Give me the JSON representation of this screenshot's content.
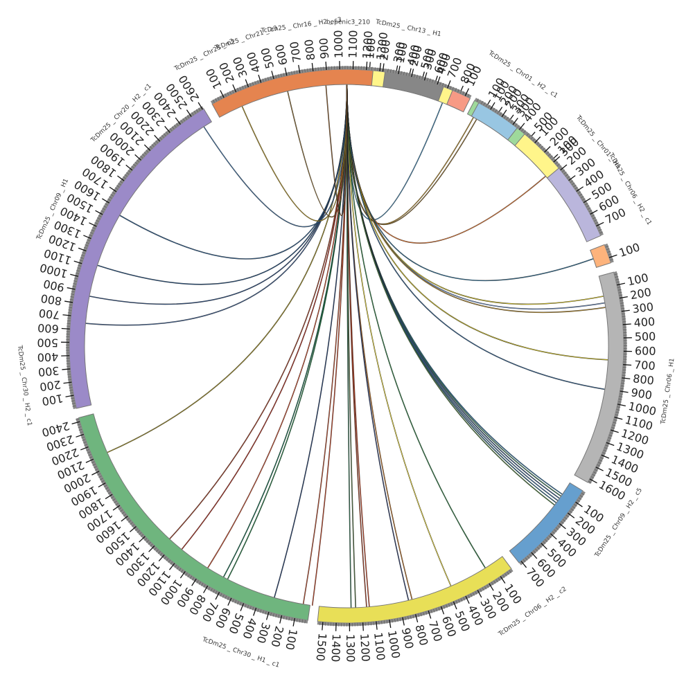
{
  "chart_data": {
    "type": "chord",
    "segments": [
      {
        "name": "bepenic3_210",
        "start_deg": 359.2,
        "end_deg": 360.6,
        "length": 40,
        "color": "#a6cee3",
        "ticks": [],
        "label_deg": 0.3
      },
      {
        "name": "TcDm25_Chr13_H1",
        "start_deg": 2.0,
        "end_deg": 25.5,
        "length": 850,
        "color": "#fff58a",
        "ticks": [
          100,
          200,
          300,
          400,
          500,
          600,
          700,
          800
        ],
        "label_deg": 11
      },
      {
        "name": "TcDm25_Chr01_H2_c1",
        "start_deg": 27.5,
        "end_deg": 43.0,
        "length": 560,
        "color": "#9ed99b",
        "ticks": [
          100,
          200,
          300,
          400,
          500
        ],
        "label_deg": 33
      },
      {
        "name": "TcDm25_Chr01_H1",
        "start_deg": 45.0,
        "end_deg": 66.5,
        "length": 780,
        "color": "#bab6dc",
        "ticks": [
          100,
          200,
          300,
          400,
          500,
          600,
          700
        ],
        "label_deg": 51
      },
      {
        "name": "TcDm25_Chr06_H2_c1",
        "start_deg": 68.5,
        "end_deg": 72.5,
        "length": 140,
        "color": "#fdb37c",
        "ticks": [
          100
        ],
        "label_deg": 61
      },
      {
        "name": "TcDm25_Chr06_H1",
        "start_deg": 74.5,
        "end_deg": 119.5,
        "length": 1630,
        "color": "#b5b5b5",
        "ticks": [
          100,
          200,
          300,
          400,
          500,
          600,
          700,
          800,
          900,
          1000,
          1100,
          1200,
          1300,
          1400,
          1500,
          1600
        ],
        "label_deg": 98
      },
      {
        "name": "TcDm25_Chr09_H2_c5",
        "start_deg": 121.5,
        "end_deg": 141.5,
        "length": 720,
        "color": "#669fce",
        "ticks": [
          100,
          200,
          300,
          400,
          500,
          600,
          700
        ],
        "label_deg": 123
      },
      {
        "name": "TcDm25_Chr06_H2_c2",
        "start_deg": 143.5,
        "end_deg": 186.0,
        "length": 1540,
        "color": "#e8df57",
        "ticks": [
          100,
          200,
          300,
          400,
          500,
          600,
          700,
          800,
          900,
          1000,
          1100,
          1200,
          1300,
          1400,
          1500
        ],
        "label_deg": 145
      },
      {
        "name": "TcDm25_Chr30_H1_c1",
        "start_deg": 188.0,
        "end_deg": 255.0,
        "length": 2430,
        "color": "#6fb57e",
        "ticks": [
          100,
          200,
          300,
          400,
          500,
          600,
          700,
          800,
          900,
          1000,
          1100,
          1200,
          1300,
          1400,
          1500,
          1600,
          1700,
          1800,
          1900,
          2000,
          2100,
          2200,
          2300,
          2400
        ],
        "label_deg": 199
      },
      {
        "name": "TcDm25_Chr30_H2_c1",
        "start_deg": 257.0,
        "end_deg": 329.0,
        "length": 2610,
        "color": "#9b8ac8",
        "ticks": [
          100,
          200,
          300,
          400,
          500,
          600,
          700,
          800,
          900,
          1000,
          1100,
          1200,
          1300,
          1400,
          1500,
          1600,
          1700,
          1800,
          1900,
          2000,
          2100,
          2200,
          2300,
          2400,
          2500,
          2600
        ],
        "label_deg": 263
      },
      {
        "name": "TcDm25_Chr09_H1",
        "start_deg": 331.0,
        "end_deg": 365.5,
        "length": 1250,
        "color": "#e5844f",
        "ticks": [
          100,
          200,
          300,
          400,
          500,
          600,
          700,
          800,
          900,
          1000,
          1100,
          1200,
          1300
        ],
        "label_deg": 295
      },
      {
        "name": "TcDm25_Chr20_H2_c1",
        "start_deg": 368.0,
        "end_deg": 380.5,
        "length": 450,
        "color": "#878787",
        "ticks": [
          100,
          200,
          300,
          400
        ],
        "label_deg": 316
      },
      {
        "name": "TcDm25_Chr25_c3",
        "start_deg": 382.5,
        "end_deg": 386.5,
        "length": 140,
        "color": "#f79a85",
        "ticks": [
          100
        ],
        "label_deg": 334
      },
      {
        "name": "TcDm25_Chr21_c3",
        "start_deg": 388.5,
        "end_deg": 398.0,
        "length": 340,
        "color": "#98c6e2",
        "ticks": [
          100,
          200,
          300
        ],
        "label_deg": 342
      },
      {
        "name": "TcDm25_Chr16_H2_c3",
        "start_deg": 400.0,
        "end_deg": 410.0,
        "length": 360,
        "color": "#fff58a",
        "ticks": [
          100,
          200,
          300
        ],
        "label_deg": 352
      }
    ],
    "links": [
      {
        "to_deg": 21.5,
        "color": "#3c7ea8"
      },
      {
        "to_deg": 29.0,
        "color": "#b58a2a"
      },
      {
        "to_deg": 29.8,
        "color": "#8a6a30"
      },
      {
        "to_deg": 49.5,
        "color": "#e0722b"
      },
      {
        "to_deg": 70.5,
        "color": "#2b6a8f"
      },
      {
        "to_deg": 79.0,
        "color": "#d4c020"
      },
      {
        "to_deg": 80.5,
        "color": "#6b8cc2"
      },
      {
        "to_deg": 81.5,
        "color": "#b78a2a"
      },
      {
        "to_deg": 93.0,
        "color": "#c8b820"
      },
      {
        "to_deg": 99.5,
        "color": "#2f5d8a"
      },
      {
        "to_deg": 124.5,
        "color": "#2a6c9a"
      },
      {
        "to_deg": 125.0,
        "color": "#3a8060"
      },
      {
        "to_deg": 125.6,
        "color": "#2a4f7a"
      },
      {
        "to_deg": 126.2,
        "color": "#3d6b9b"
      },
      {
        "to_deg": 126.8,
        "color": "#1e5c7a"
      },
      {
        "to_deg": 127.4,
        "color": "#4a7a3a"
      },
      {
        "to_deg": 148.0,
        "color": "#2a7a40"
      },
      {
        "to_deg": 156.5,
        "color": "#e3d23a"
      },
      {
        "to_deg": 165.5,
        "color": "#b56a20"
      },
      {
        "to_deg": 166.3,
        "color": "#2a3a6a"
      },
      {
        "to_deg": 175.0,
        "color": "#c04020"
      },
      {
        "to_deg": 175.6,
        "color": "#a03a20"
      },
      {
        "to_deg": 178.0,
        "color": "#4a6a3a"
      },
      {
        "to_deg": 179.0,
        "color": "#2a6a4a"
      },
      {
        "to_deg": 187.5,
        "color": "#c04020"
      },
      {
        "to_deg": 189.5,
        "color": "#b84a2a"
      },
      {
        "to_deg": 196.0,
        "color": "#1e3a6a"
      },
      {
        "to_deg": 207.0,
        "color": "#1e7a40"
      },
      {
        "to_deg": 208.0,
        "color": "#0f6a4a"
      },
      {
        "to_deg": 212.0,
        "color": "#c84a2a"
      },
      {
        "to_deg": 219.0,
        "color": "#b02a1a"
      },
      {
        "to_deg": 222.5,
        "color": "#a03a20"
      },
      {
        "to_deg": 246.0,
        "color": "#9c8a20"
      },
      {
        "to_deg": 275.0,
        "color": "#3a5a8a"
      },
      {
        "to_deg": 281.0,
        "color": "#2a4a7a"
      },
      {
        "to_deg": 288.0,
        "color": "#1e4a7a"
      },
      {
        "to_deg": 300.0,
        "color": "#2a5a8a"
      },
      {
        "to_deg": 327.0,
        "color": "#3a6a9a"
      },
      {
        "to_deg": 336.5,
        "color": "#b09020"
      },
      {
        "to_deg": 347.0,
        "color": "#8a6a30"
      },
      {
        "to_deg": 355.5,
        "color": "#8a5a2a"
      }
    ]
  }
}
